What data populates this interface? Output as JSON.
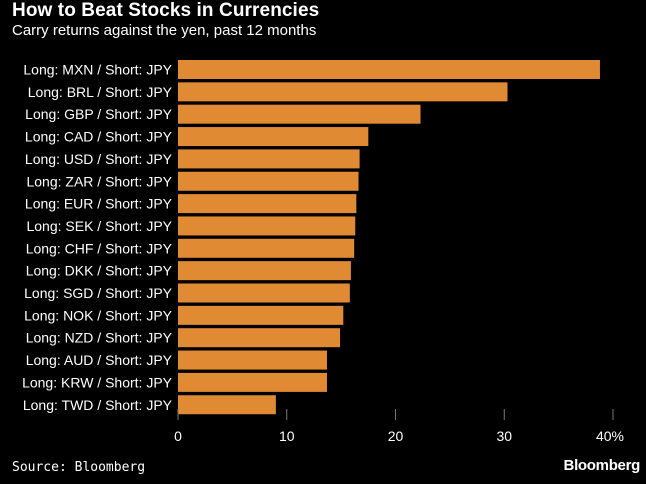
{
  "header": {
    "title": "How to Beat Stocks in Currencies",
    "subtitle": "Carry returns against the yen, past 12 months"
  },
  "footer": {
    "source": "Source: Bloomberg",
    "brand": "Bloomberg"
  },
  "colors": {
    "background": "#000000",
    "bar": "#e08a34",
    "text": "#ffffff",
    "tick": "#7a7a7a"
  },
  "chart_data": {
    "type": "bar",
    "orientation": "horizontal",
    "title": "How to Beat Stocks in Currencies",
    "subtitle": "Carry returns against the yen, past 12 months",
    "xlabel": "",
    "ylabel": "",
    "xlim": [
      0,
      40
    ],
    "tick_values": [
      0,
      10,
      20,
      30,
      40
    ],
    "tick_labels": [
      "0",
      "10",
      "20",
      "30",
      "40%"
    ],
    "grid": false,
    "categories": [
      "Long: MXN / Short: JPY",
      "Long: BRL / Short: JPY",
      "Long: GBP / Short: JPY",
      "Long: CAD / Short: JPY",
      "Long: USD / Short: JPY",
      "Long: ZAR / Short: JPY",
      "Long: EUR / Short: JPY",
      "Long: SEK / Short: JPY",
      "Long: CHF / Short: JPY",
      "Long: DKK / Short: JPY",
      "Long: SGD / Short: JPY",
      "Long: NOK / Short: JPY",
      "Long: NZD / Short: JPY",
      "Long: AUD / Short: JPY",
      "Long: KRW / Short: JPY",
      "Long: TWD / Short: JPY"
    ],
    "values": [
      38.8,
      30.3,
      22.3,
      17.5,
      16.7,
      16.6,
      16.4,
      16.3,
      16.2,
      15.9,
      15.8,
      15.2,
      14.9,
      13.7,
      13.7,
      9.0
    ]
  }
}
